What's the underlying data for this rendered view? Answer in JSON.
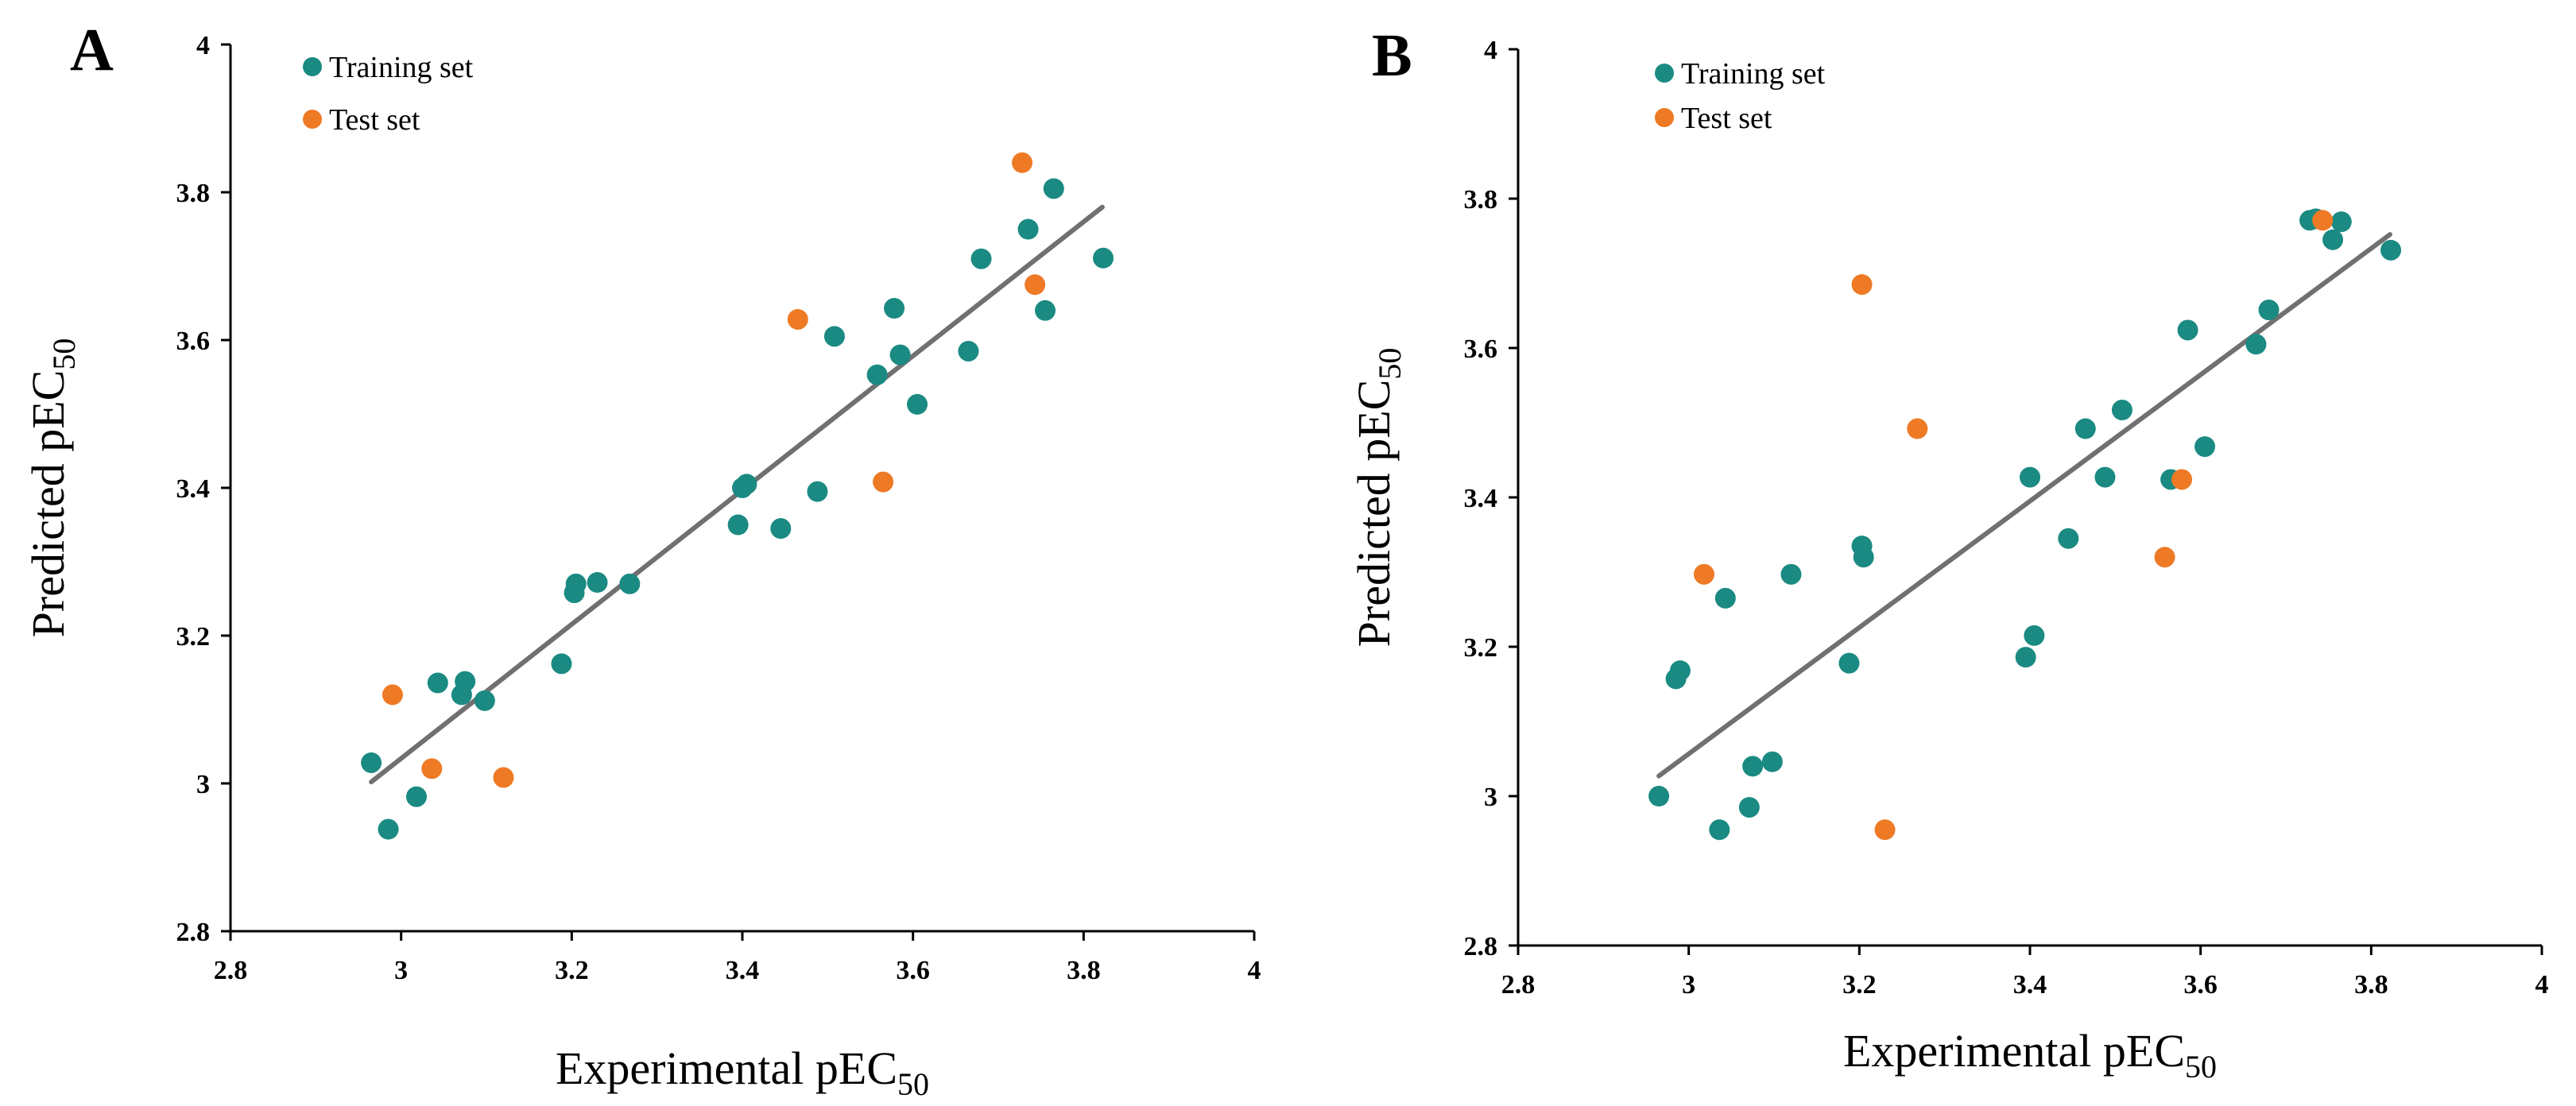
{
  "colors": {
    "training": "#1A8A82",
    "test": "#EE7A25",
    "fit": "#707070"
  },
  "chart_data": [
    {
      "type": "scatter",
      "panel": "A",
      "xlabel": "Experimental pEC",
      "xlabel_sub": "50",
      "ylabel": "Predicted pEC",
      "ylabel_sub": "50",
      "xlim": [
        2.8,
        4.0
      ],
      "ylim": [
        2.8,
        4.0
      ],
      "xticks": [
        "2.8",
        "3",
        "3.2",
        "3.4",
        "3.6",
        "3.8",
        "4"
      ],
      "yticks": [
        "2.8",
        "3",
        "3.2",
        "3.4",
        "3.6",
        "3.8",
        "4"
      ],
      "legend_position": "top-left",
      "fit_line": {
        "x": [
          2.965,
          3.822
        ],
        "y": [
          3.002,
          3.78
        ]
      },
      "series": [
        {
          "name": "Training set",
          "color_key": "training",
          "points": [
            [
              2.965,
              3.028
            ],
            [
              2.985,
              2.938
            ],
            [
              3.018,
              2.982
            ],
            [
              3.043,
              3.136
            ],
            [
              3.071,
              3.12
            ],
            [
              3.075,
              3.138
            ],
            [
              3.098,
              3.112
            ],
            [
              3.188,
              3.162
            ],
            [
              3.203,
              3.258
            ],
            [
              3.205,
              3.27
            ],
            [
              3.23,
              3.272
            ],
            [
              3.268,
              3.27
            ],
            [
              3.395,
              3.35
            ],
            [
              3.4,
              3.4
            ],
            [
              3.405,
              3.405
            ],
            [
              3.445,
              3.345
            ],
            [
              3.488,
              3.395
            ],
            [
              3.508,
              3.605
            ],
            [
              3.558,
              3.553
            ],
            [
              3.578,
              3.643
            ],
            [
              3.585,
              3.58
            ],
            [
              3.605,
              3.513
            ],
            [
              3.665,
              3.585
            ],
            [
              3.68,
              3.71
            ],
            [
              3.735,
              3.75
            ],
            [
              3.755,
              3.64
            ],
            [
              3.765,
              3.805
            ],
            [
              3.823,
              3.711
            ]
          ]
        },
        {
          "name": "Test set",
          "color_key": "test",
          "points": [
            [
              2.99,
              3.12
            ],
            [
              3.036,
              3.02
            ],
            [
              3.12,
              3.008
            ],
            [
              3.465,
              3.628
            ],
            [
              3.565,
              3.408
            ],
            [
              3.728,
              3.84
            ],
            [
              3.743,
              3.675
            ]
          ]
        }
      ]
    },
    {
      "type": "scatter",
      "panel": "B",
      "xlabel": "Experimental pEC",
      "xlabel_sub": "50",
      "ylabel": "Predicted pEC",
      "ylabel_sub": "50",
      "xlim": [
        2.8,
        4.0
      ],
      "ylim": [
        2.8,
        4.0
      ],
      "xticks": [
        "2.8",
        "3",
        "3.2",
        "3.4",
        "3.6",
        "3.8",
        "4"
      ],
      "yticks": [
        "2.8",
        "3",
        "3.2",
        "3.4",
        "3.6",
        "3.8",
        "4"
      ],
      "legend_position": "top-left",
      "fit_line": {
        "x": [
          2.965,
          3.822
        ],
        "y": [
          3.027,
          3.752
        ]
      },
      "series": [
        {
          "name": "Training set",
          "color_key": "training",
          "points": [
            [
              2.965,
              3.0
            ],
            [
              2.985,
              3.157
            ],
            [
              2.99,
              3.168
            ],
            [
              3.036,
              2.955
            ],
            [
              3.043,
              3.265
            ],
            [
              3.071,
              2.985
            ],
            [
              3.075,
              3.04
            ],
            [
              3.098,
              3.046
            ],
            [
              3.12,
              3.297
            ],
            [
              3.188,
              3.178
            ],
            [
              3.203,
              3.335
            ],
            [
              3.205,
              3.32
            ],
            [
              3.395,
              3.186
            ],
            [
              3.4,
              3.427
            ],
            [
              3.405,
              3.215
            ],
            [
              3.445,
              3.345
            ],
            [
              3.465,
              3.492
            ],
            [
              3.488,
              3.427
            ],
            [
              3.508,
              3.517
            ],
            [
              3.565,
              3.424
            ],
            [
              3.585,
              3.624
            ],
            [
              3.605,
              3.468
            ],
            [
              3.665,
              3.605
            ],
            [
              3.68,
              3.651
            ],
            [
              3.728,
              3.771
            ],
            [
              3.735,
              3.773
            ],
            [
              3.755,
              3.745
            ],
            [
              3.765,
              3.769
            ],
            [
              3.823,
              3.731
            ]
          ]
        },
        {
          "name": "Test set",
          "color_key": "test",
          "points": [
            [
              3.018,
              3.297
            ],
            [
              3.203,
              3.685
            ],
            [
              3.23,
              2.955
            ],
            [
              3.268,
              3.492
            ],
            [
              3.558,
              3.32
            ],
            [
              3.578,
              3.424
            ],
            [
              3.743,
              3.771
            ]
          ]
        }
      ]
    }
  ]
}
